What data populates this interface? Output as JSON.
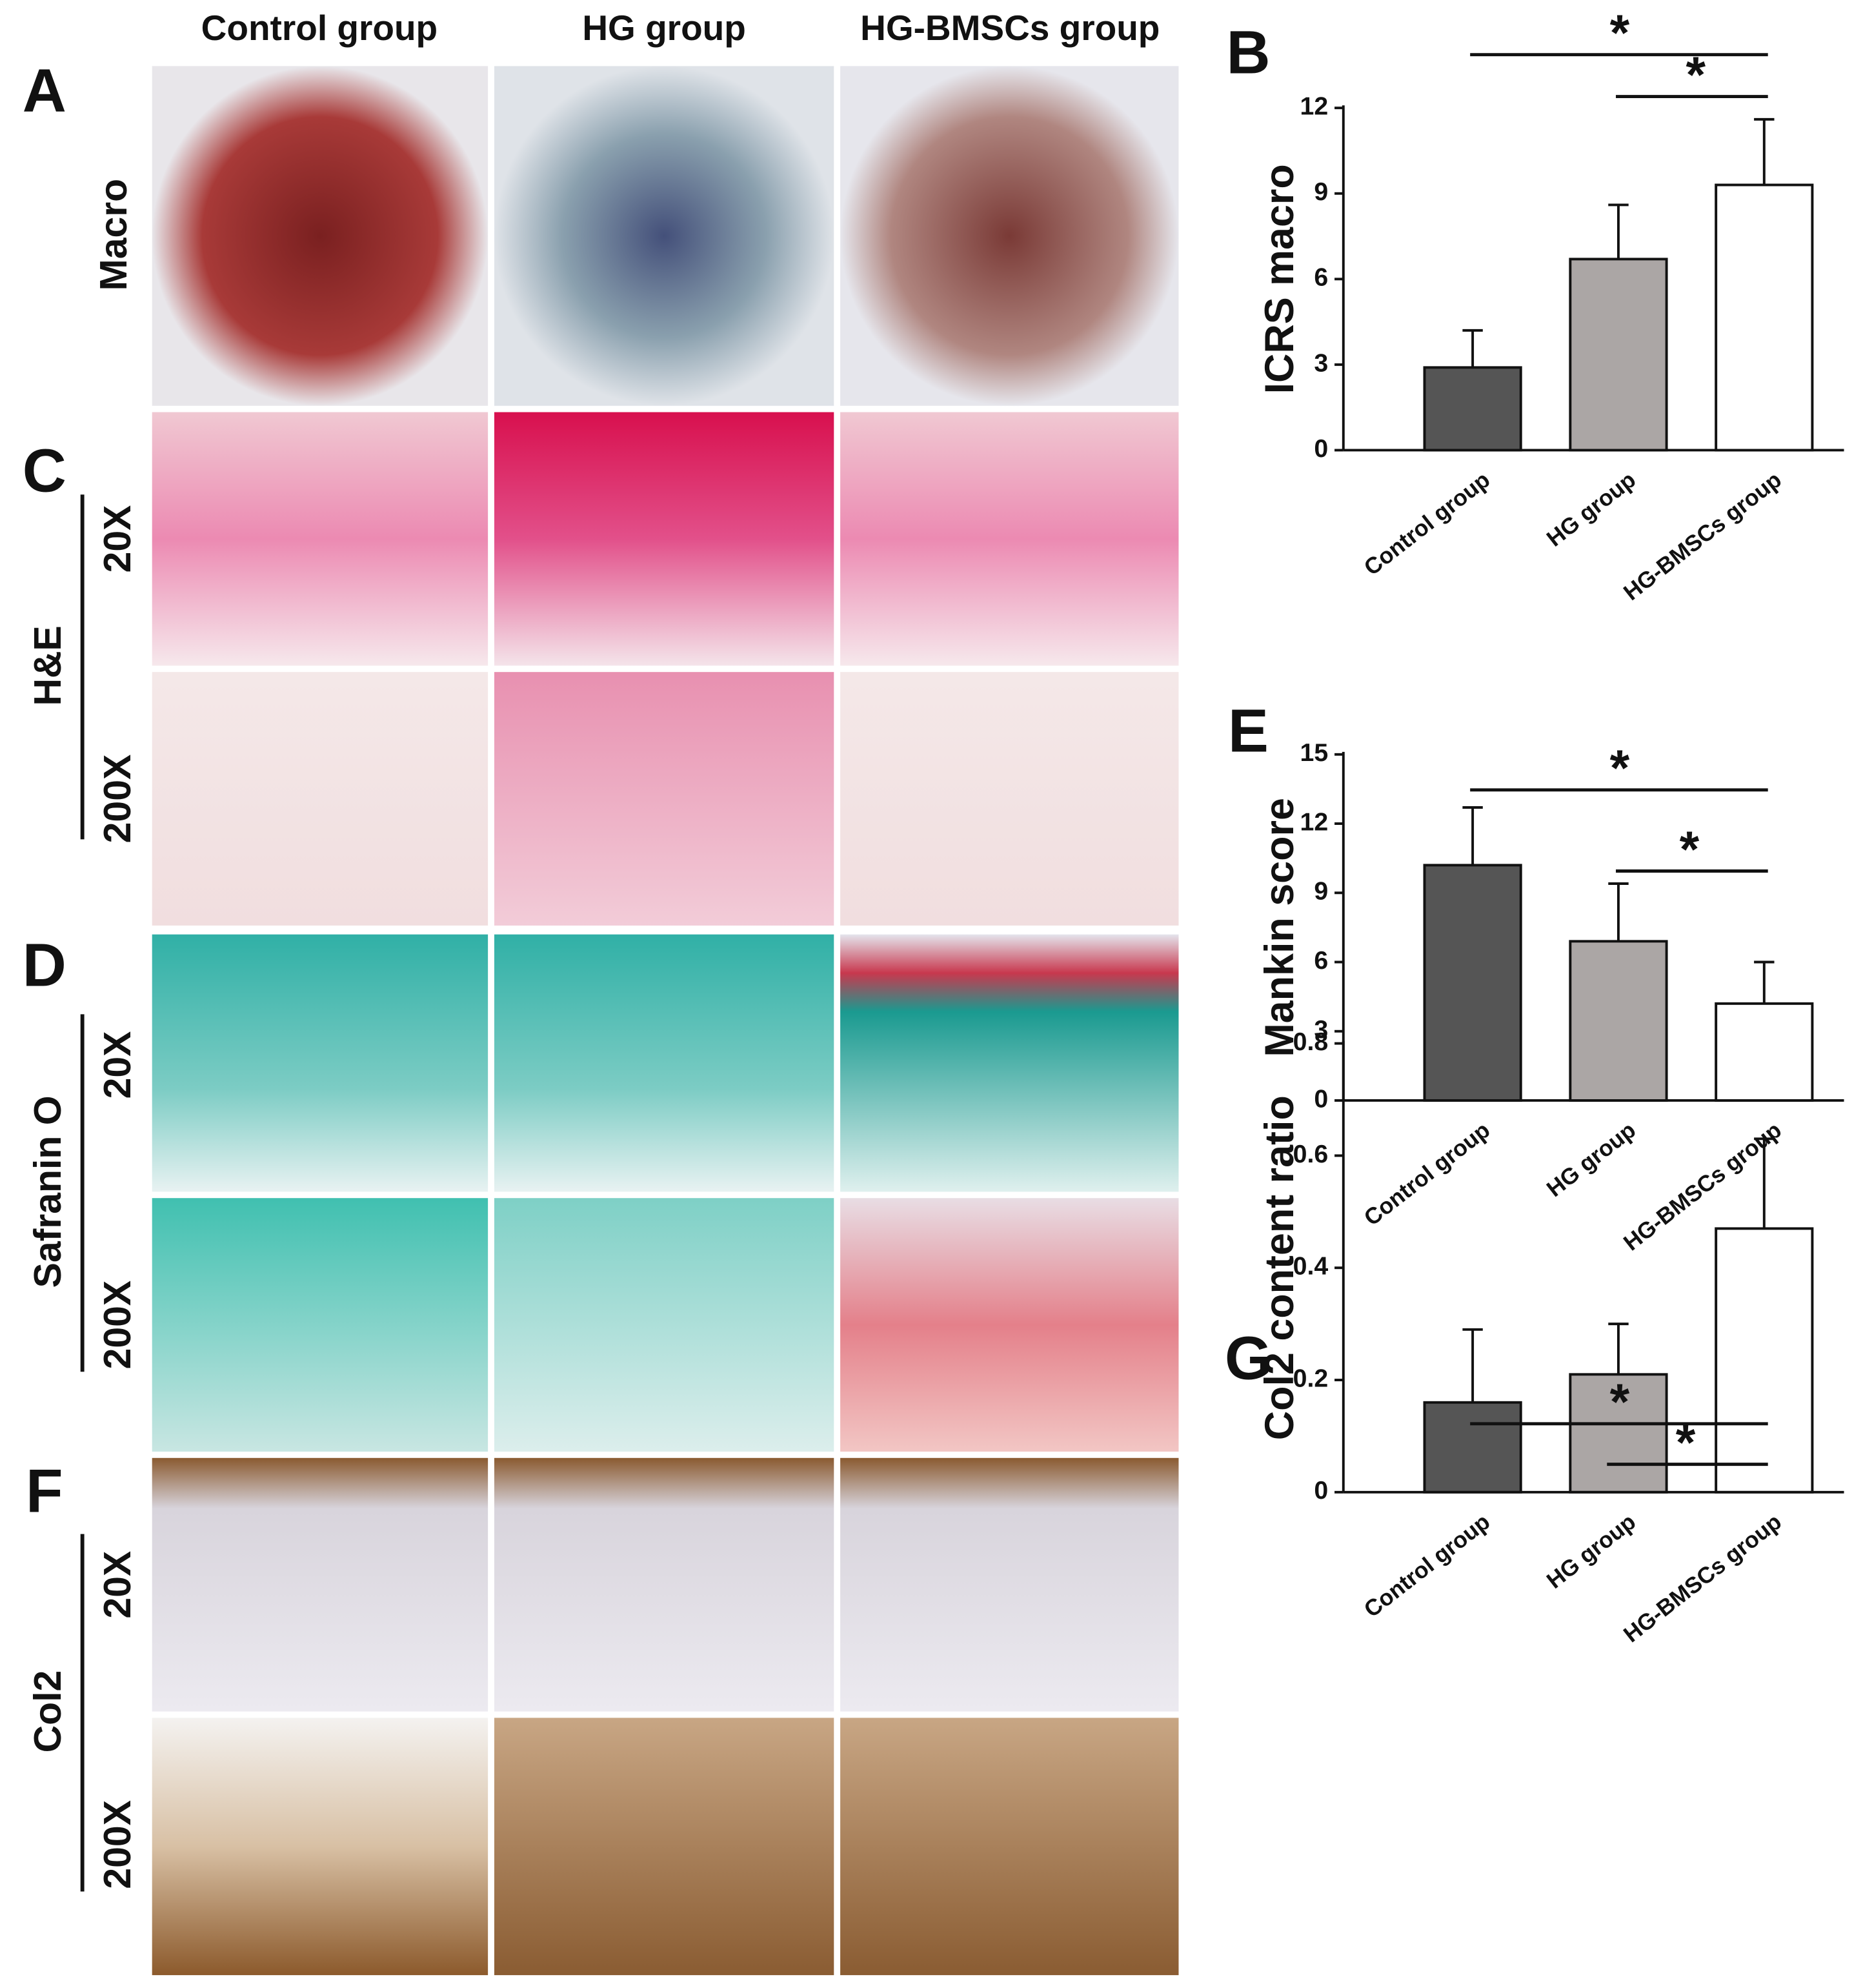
{
  "figure": {
    "columns": [
      "Control group",
      "HG group",
      "HG-BMSCs group"
    ],
    "panel_labels": [
      "A",
      "C",
      "D",
      "F"
    ],
    "rows": [
      {
        "label": "Macro"
      },
      {
        "label": "H&E",
        "magnifications": [
          "20X",
          "200X"
        ]
      },
      {
        "label": "Safranin O",
        "magnifications": [
          "20X",
          "200X"
        ]
      },
      {
        "label": "Col2",
        "magnifications": [
          "20X",
          "200X"
        ]
      }
    ]
  },
  "chart_data": [
    {
      "type": "bar",
      "panel_label": "B",
      "ylabel": "ICRS macro",
      "categories": [
        "Control group",
        "HG group",
        "HG-BMSCs group"
      ],
      "values": [
        2.9,
        6.7,
        9.3
      ],
      "errors": [
        1.3,
        1.9,
        2.3
      ],
      "colors": [
        "#555555",
        "#aba6a5",
        "#ffffff"
      ],
      "ylim": [
        0,
        12
      ],
      "yticks": [
        0,
        3,
        6,
        9,
        12
      ],
      "significance": [
        "*",
        "*"
      ]
    },
    {
      "type": "bar",
      "panel_label": "E",
      "ylabel": "Mankin score",
      "categories": [
        "Control group",
        "HG group",
        "HG-BMSCs group"
      ],
      "values": [
        10.2,
        6.9,
        4.2
      ],
      "errors": [
        2.5,
        2.5,
        1.8
      ],
      "colors": [
        "#555555",
        "#aba6a5",
        "#ffffff"
      ],
      "ylim": [
        0,
        15
      ],
      "yticks": [
        0,
        3,
        6,
        9,
        12,
        15
      ],
      "significance": [
        "*",
        "*"
      ]
    },
    {
      "type": "bar",
      "panel_label": "G",
      "ylabel": "Col2 content ratio",
      "categories": [
        "Control group",
        "HG group",
        "HG-BMSCs group"
      ],
      "values": [
        0.16,
        0.21,
        0.47
      ],
      "errors": [
        0.13,
        0.09,
        0.16
      ],
      "colors": [
        "#555555",
        "#aba6a5",
        "#ffffff"
      ],
      "ylim": [
        0,
        0.8
      ],
      "yticks": [
        0,
        0.2,
        0.4,
        0.6,
        0.8
      ],
      "significance": [
        "*",
        "*"
      ]
    }
  ]
}
